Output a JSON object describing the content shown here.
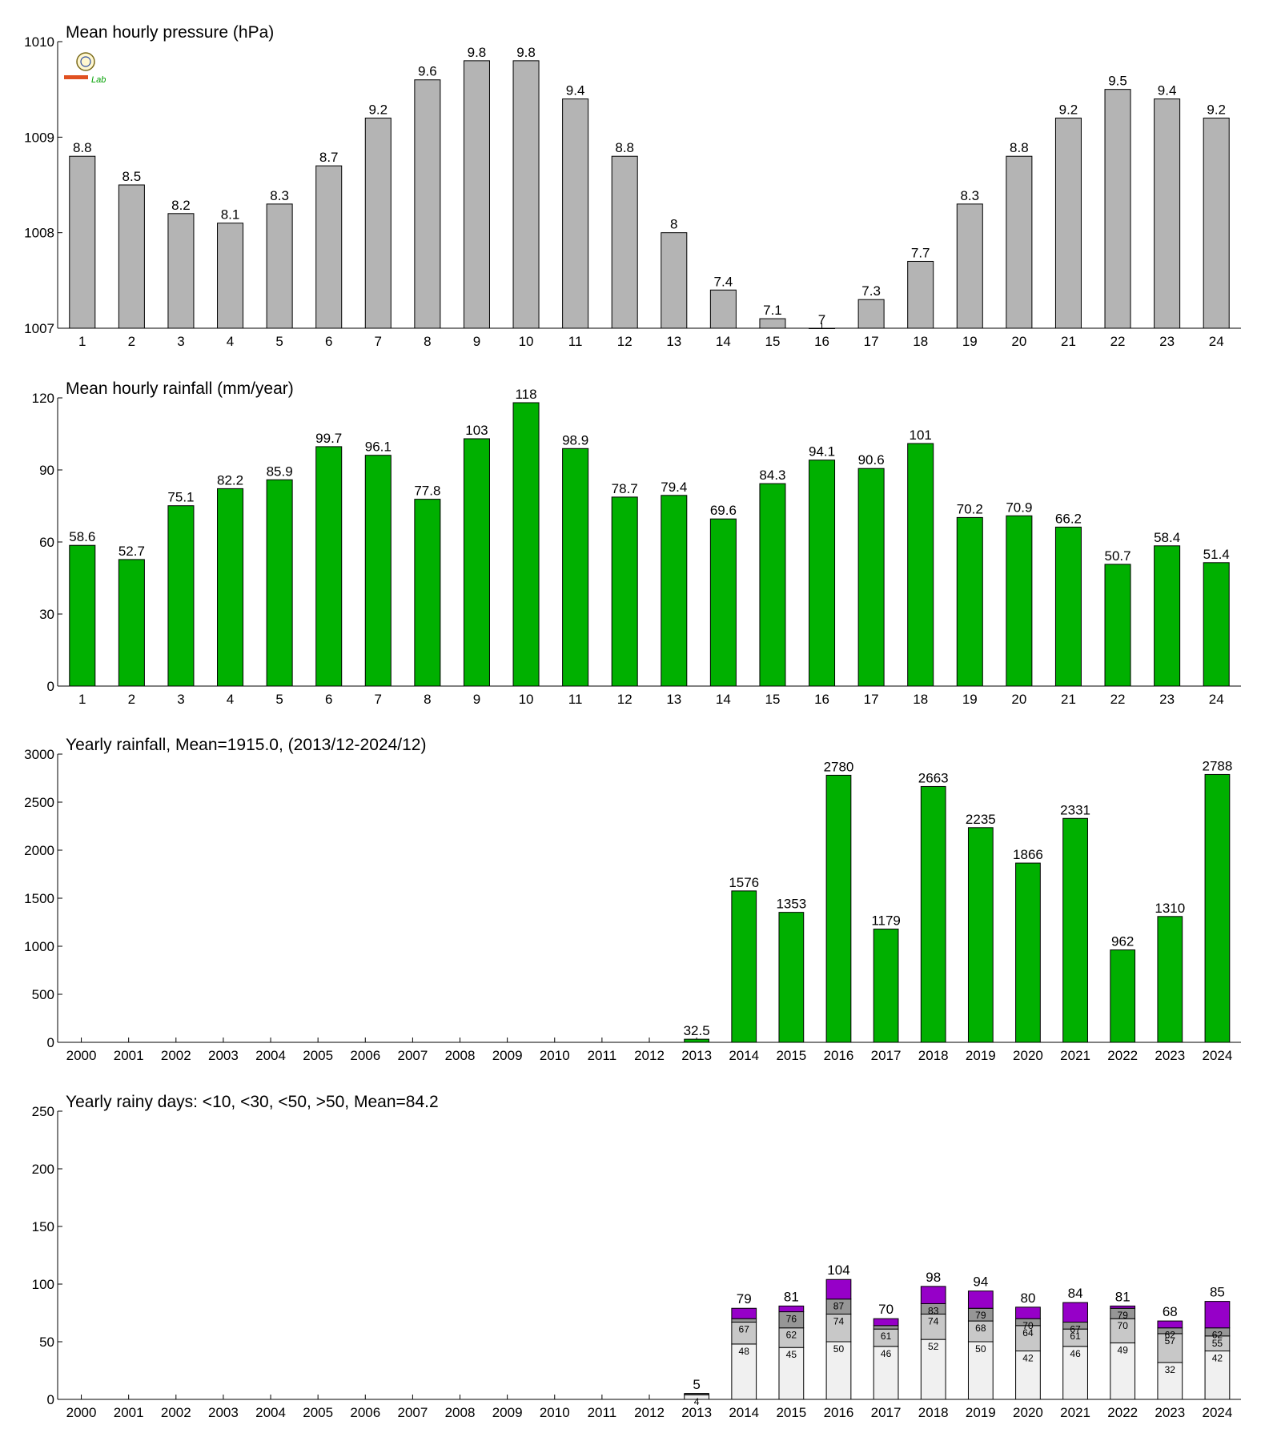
{
  "colors": {
    "pressure": "#b4b4b4",
    "rain": "#00b000",
    "days_lt10": "#f0f0f0",
    "days_lt30": "#c8c8c8",
    "days_lt50": "#969696",
    "days_gt50": "#9600c8"
  },
  "logo": {
    "text": "Lab",
    "icon": "seal-icon"
  },
  "chart_data": [
    {
      "type": "bar",
      "title": "Mean hourly pressure (hPa)",
      "categories": [
        "1",
        "2",
        "3",
        "4",
        "5",
        "6",
        "7",
        "8",
        "9",
        "10",
        "11",
        "12",
        "13",
        "14",
        "15",
        "16",
        "17",
        "18",
        "19",
        "20",
        "21",
        "22",
        "23",
        "24"
      ],
      "values": [
        1008.8,
        1008.5,
        1008.2,
        1008.1,
        1008.3,
        1008.7,
        1009.2,
        1009.6,
        1009.8,
        1009.8,
        1009.4,
        1008.8,
        1008.0,
        1007.4,
        1007.1,
        1007.0,
        1007.3,
        1007.7,
        1008.3,
        1008.8,
        1009.2,
        1009.5,
        1009.4,
        1009.2
      ],
      "value_labels": [
        "8.8",
        "8.5",
        "8.2",
        "8.1",
        "8.3",
        "8.7",
        "9.2",
        "9.6",
        "9.8",
        "9.8",
        "9.4",
        "8.8",
        "8",
        "7.4",
        "7.1",
        "7",
        "7.3",
        "7.7",
        "8.3",
        "8.8",
        "9.2",
        "9.5",
        "9.4",
        "9.2"
      ],
      "ylim": [
        1007,
        1010
      ],
      "yticks": [
        "1007",
        "1008",
        "1009",
        "1010"
      ]
    },
    {
      "type": "bar",
      "title": "Mean hourly rainfall (mm/year)",
      "categories": [
        "1",
        "2",
        "3",
        "4",
        "5",
        "6",
        "7",
        "8",
        "9",
        "10",
        "11",
        "12",
        "13",
        "14",
        "15",
        "16",
        "17",
        "18",
        "19",
        "20",
        "21",
        "22",
        "23",
        "24"
      ],
      "values": [
        58.6,
        52.7,
        75.1,
        82.2,
        85.9,
        99.7,
        96.1,
        77.8,
        103,
        118,
        98.9,
        78.7,
        79.4,
        69.6,
        84.3,
        94.1,
        90.6,
        101,
        70.2,
        70.9,
        66.2,
        50.7,
        58.4,
        51.4
      ],
      "value_labels": [
        "58.6",
        "52.7",
        "75.1",
        "82.2",
        "85.9",
        "99.7",
        "96.1",
        "77.8",
        "103",
        "118",
        "98.9",
        "78.7",
        "79.4",
        "69.6",
        "84.3",
        "94.1",
        "90.6",
        "101",
        "70.2",
        "70.9",
        "66.2",
        "50.7",
        "58.4",
        "51.4"
      ],
      "ylim": [
        0,
        120
      ],
      "yticks": [
        "0",
        "30",
        "60",
        "90",
        "120"
      ]
    },
    {
      "type": "bar",
      "title": "Yearly rainfall, Mean=1915.0, (2013/12-2024/12)",
      "categories": [
        "2000",
        "2001",
        "2002",
        "2003",
        "2004",
        "2005",
        "2006",
        "2007",
        "2008",
        "2009",
        "2010",
        "2011",
        "2012",
        "2013",
        "2014",
        "2015",
        "2016",
        "2017",
        "2018",
        "2019",
        "2020",
        "2021",
        "2022",
        "2023",
        "2024"
      ],
      "values": [
        null,
        null,
        null,
        null,
        null,
        null,
        null,
        null,
        null,
        null,
        null,
        null,
        null,
        32.5,
        1576,
        1353,
        2780,
        1179,
        2663,
        2235,
        1866,
        2331,
        962,
        1310,
        2788
      ],
      "value_labels": [
        "",
        "",
        "",
        "",
        "",
        "",
        "",
        "",
        "",
        "",
        "",
        "",
        "",
        "32.5",
        "1576",
        "1353",
        "2780",
        "1179",
        "2663",
        "2235",
        "1866",
        "2331",
        "962",
        "1310",
        "2788"
      ],
      "ylim": [
        0,
        3000
      ],
      "yticks": [
        "0",
        "500",
        "1000",
        "1500",
        "2000",
        "2500",
        "3000"
      ]
    },
    {
      "type": "bar",
      "stacked": true,
      "title": "Yearly rainy days: <10, <30, <50, >50, Mean=84.2",
      "categories": [
        "2000",
        "2001",
        "2002",
        "2003",
        "2004",
        "2005",
        "2006",
        "2007",
        "2008",
        "2009",
        "2010",
        "2011",
        "2012",
        "2013",
        "2014",
        "2015",
        "2016",
        "2017",
        "2018",
        "2019",
        "2020",
        "2021",
        "2022",
        "2023",
        "2024"
      ],
      "cumulative": [
        null,
        null,
        null,
        null,
        null,
        null,
        null,
        null,
        null,
        null,
        null,
        null,
        null,
        [
          4,
          5,
          5,
          5
        ],
        [
          48,
          67,
          70,
          79
        ],
        [
          45,
          62,
          76,
          81
        ],
        [
          50,
          74,
          87,
          104
        ],
        [
          46,
          61,
          64,
          70
        ],
        [
          52,
          74,
          83,
          98
        ],
        [
          50,
          68,
          79,
          94
        ],
        [
          42,
          64,
          70,
          80
        ],
        [
          46,
          61,
          67,
          84
        ],
        [
          49,
          70,
          79,
          81
        ],
        [
          32,
          57,
          62,
          68
        ],
        [
          42,
          55,
          62,
          85
        ]
      ],
      "inner_labels": [
        null,
        null,
        null,
        null,
        null,
        null,
        null,
        null,
        null,
        null,
        null,
        null,
        null,
        [
          "4",
          "",
          ""
        ],
        [
          "48",
          "67",
          ""
        ],
        [
          "45",
          "62",
          "76"
        ],
        [
          "50",
          "74",
          "87"
        ],
        [
          "46",
          "61",
          ""
        ],
        [
          "52",
          "74",
          "83"
        ],
        [
          "50",
          "68",
          "79"
        ],
        [
          "42",
          "64",
          "70"
        ],
        [
          "46",
          "61",
          "67"
        ],
        [
          "49",
          "70",
          "79"
        ],
        [
          "32",
          "57",
          "62"
        ],
        [
          "42",
          "55",
          "62"
        ]
      ],
      "totals": [
        "",
        "",
        "",
        "",
        "",
        "",
        "",
        "",
        "",
        "",
        "",
        "",
        "",
        "5",
        "79",
        "81",
        "104",
        "70",
        "98",
        "94",
        "80",
        "84",
        "81",
        "68",
        "85"
      ],
      "ylim": [
        0,
        250
      ],
      "yticks": [
        "0",
        "50",
        "100",
        "150",
        "200",
        "250"
      ]
    }
  ]
}
